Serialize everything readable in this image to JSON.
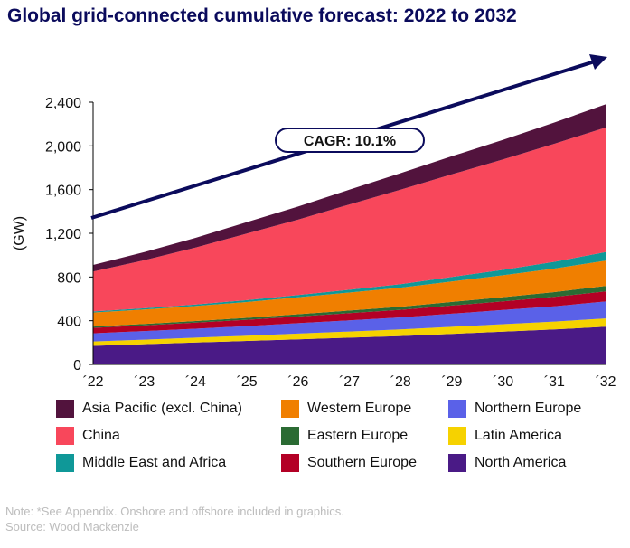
{
  "title": "Global grid-connected cumulative forecast: 2022 to 2032",
  "notes": {
    "line1": "Note: *See Appendix. Onshore and offshore included in graphics.",
    "line2": "Source: Wood Mackenzie"
  },
  "chart_data": {
    "type": "area",
    "stacked": true,
    "title": "Global grid-connected cumulative forecast: 2022 to 2032",
    "ylabel": "(GW)",
    "xlabel": "",
    "ylim": [
      0,
      2400
    ],
    "yticks": [
      0,
      400,
      800,
      1200,
      1600,
      2000,
      2400
    ],
    "ytick_labels": [
      "0",
      "400",
      "800",
      "1,200",
      "1,600",
      "2,000",
      "2,400"
    ],
    "x": [
      "´22",
      "´23",
      "´24",
      "´25",
      "´26",
      "´27",
      "´28",
      "´29",
      "´30",
      "´31",
      "´32"
    ],
    "grid": false,
    "legend_position": "bottom",
    "annotation": {
      "text": "CAGR: 10.1%",
      "type": "arrow trend"
    },
    "series": [
      {
        "name": "North America",
        "color": "#4a1a86",
        "values": [
          170,
          185,
          200,
          215,
          230,
          245,
          260,
          280,
          300,
          320,
          345
        ]
      },
      {
        "name": "Latin America",
        "color": "#f6d200",
        "values": [
          40,
          42,
          45,
          48,
          52,
          56,
          60,
          64,
          68,
          72,
          76
        ]
      },
      {
        "name": "Northern Europe",
        "color": "#5a61e8",
        "values": [
          75,
          78,
          82,
          88,
          95,
          102,
          110,
          120,
          130,
          140,
          155
        ]
      },
      {
        "name": "Southern Europe",
        "color": "#b30025",
        "values": [
          50,
          52,
          55,
          58,
          62,
          66,
          70,
          75,
          80,
          86,
          92
        ]
      },
      {
        "name": "Eastern Europe",
        "color": "#2b6b33",
        "values": [
          12,
          13,
          15,
          17,
          20,
          24,
          28,
          33,
          38,
          44,
          50
        ]
      },
      {
        "name": "Western Europe",
        "color": "#f07f00",
        "values": [
          128,
          132,
          138,
          145,
          155,
          165,
          175,
          188,
          200,
          215,
          232
        ]
      },
      {
        "name": "Middle East and Africa",
        "color": "#0f9898",
        "values": [
          10,
          12,
          14,
          17,
          21,
          26,
          32,
          40,
          50,
          62,
          78
        ]
      },
      {
        "name": "China",
        "color": "#f8475b",
        "values": [
          365,
          440,
          520,
          610,
          690,
          780,
          865,
          940,
          1010,
          1080,
          1140
        ]
      },
      {
        "name": "Asia Pacific (excl. China)",
        "color": "#52133d",
        "values": [
          60,
          75,
          90,
          105,
          120,
          135,
          150,
          165,
          180,
          195,
          212
        ]
      }
    ]
  },
  "legend": [
    {
      "label": "Asia Pacific (excl. China)",
      "color": "#52133d"
    },
    {
      "label": "China",
      "color": "#f8475b"
    },
    {
      "label": "Middle East and Africa",
      "color": "#0f9898"
    },
    {
      "label": "Western Europe",
      "color": "#f07f00"
    },
    {
      "label": "Eastern Europe",
      "color": "#2b6b33"
    },
    {
      "label": "Southern Europe",
      "color": "#b30025"
    },
    {
      "label": "Northern Europe",
      "color": "#5a61e8"
    },
    {
      "label": "Latin America",
      "color": "#f6d200"
    },
    {
      "label": "North America",
      "color": "#4a1a86"
    }
  ]
}
